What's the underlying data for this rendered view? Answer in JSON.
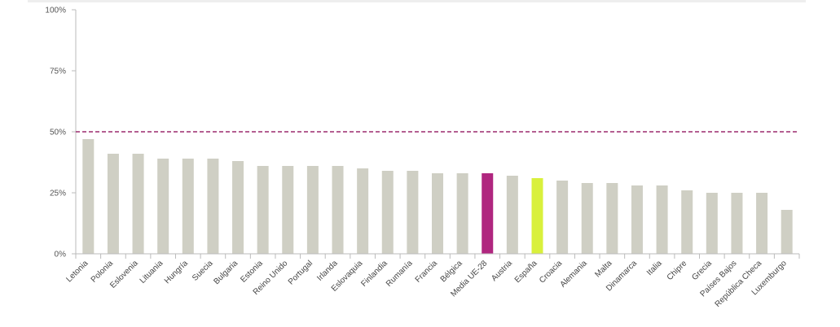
{
  "chart_data": {
    "type": "bar",
    "categories": [
      "Letonia",
      "Polonia",
      "Eslovenia",
      "Lituania",
      "Hungría",
      "Suecia",
      "Bulgaria",
      "Estonia",
      "Reino Unido",
      "Portugal",
      "Irlanda",
      "Eslovaquia",
      "Finlandia",
      "Rumanía",
      "Francia",
      "Bélgica",
      "Media UE-28",
      "Austria",
      "España",
      "Croacia",
      "Alemania",
      "Malta",
      "Dinamarca",
      "Italia",
      "Chipre",
      "Grecia",
      "Países Bajos",
      "República Checa",
      "Luxemburgo"
    ],
    "values": [
      47,
      41,
      41,
      39,
      39,
      39,
      38,
      36,
      36,
      36,
      36,
      35,
      34,
      34,
      33,
      33,
      33,
      32,
      31,
      30,
      29,
      29,
      28,
      28,
      26,
      25,
      25,
      25,
      18
    ],
    "ylim": [
      0,
      100
    ],
    "yticks": [
      0,
      25,
      50,
      75,
      100
    ],
    "ytick_labels": [
      "0%",
      "25%",
      "50%",
      "75%",
      "100%"
    ],
    "reference_line": 50,
    "colors": {
      "default_bar": "#cfcfc4",
      "highlight_average": "#b0267f",
      "highlight_spain": "#d9f03c",
      "reference_line": "#9b2a6e",
      "axis": "#bbbbbb"
    },
    "highlights": {
      "Media UE-28": "highlight_average",
      "España": "highlight_spain"
    },
    "grid": false,
    "legend": "none"
  }
}
